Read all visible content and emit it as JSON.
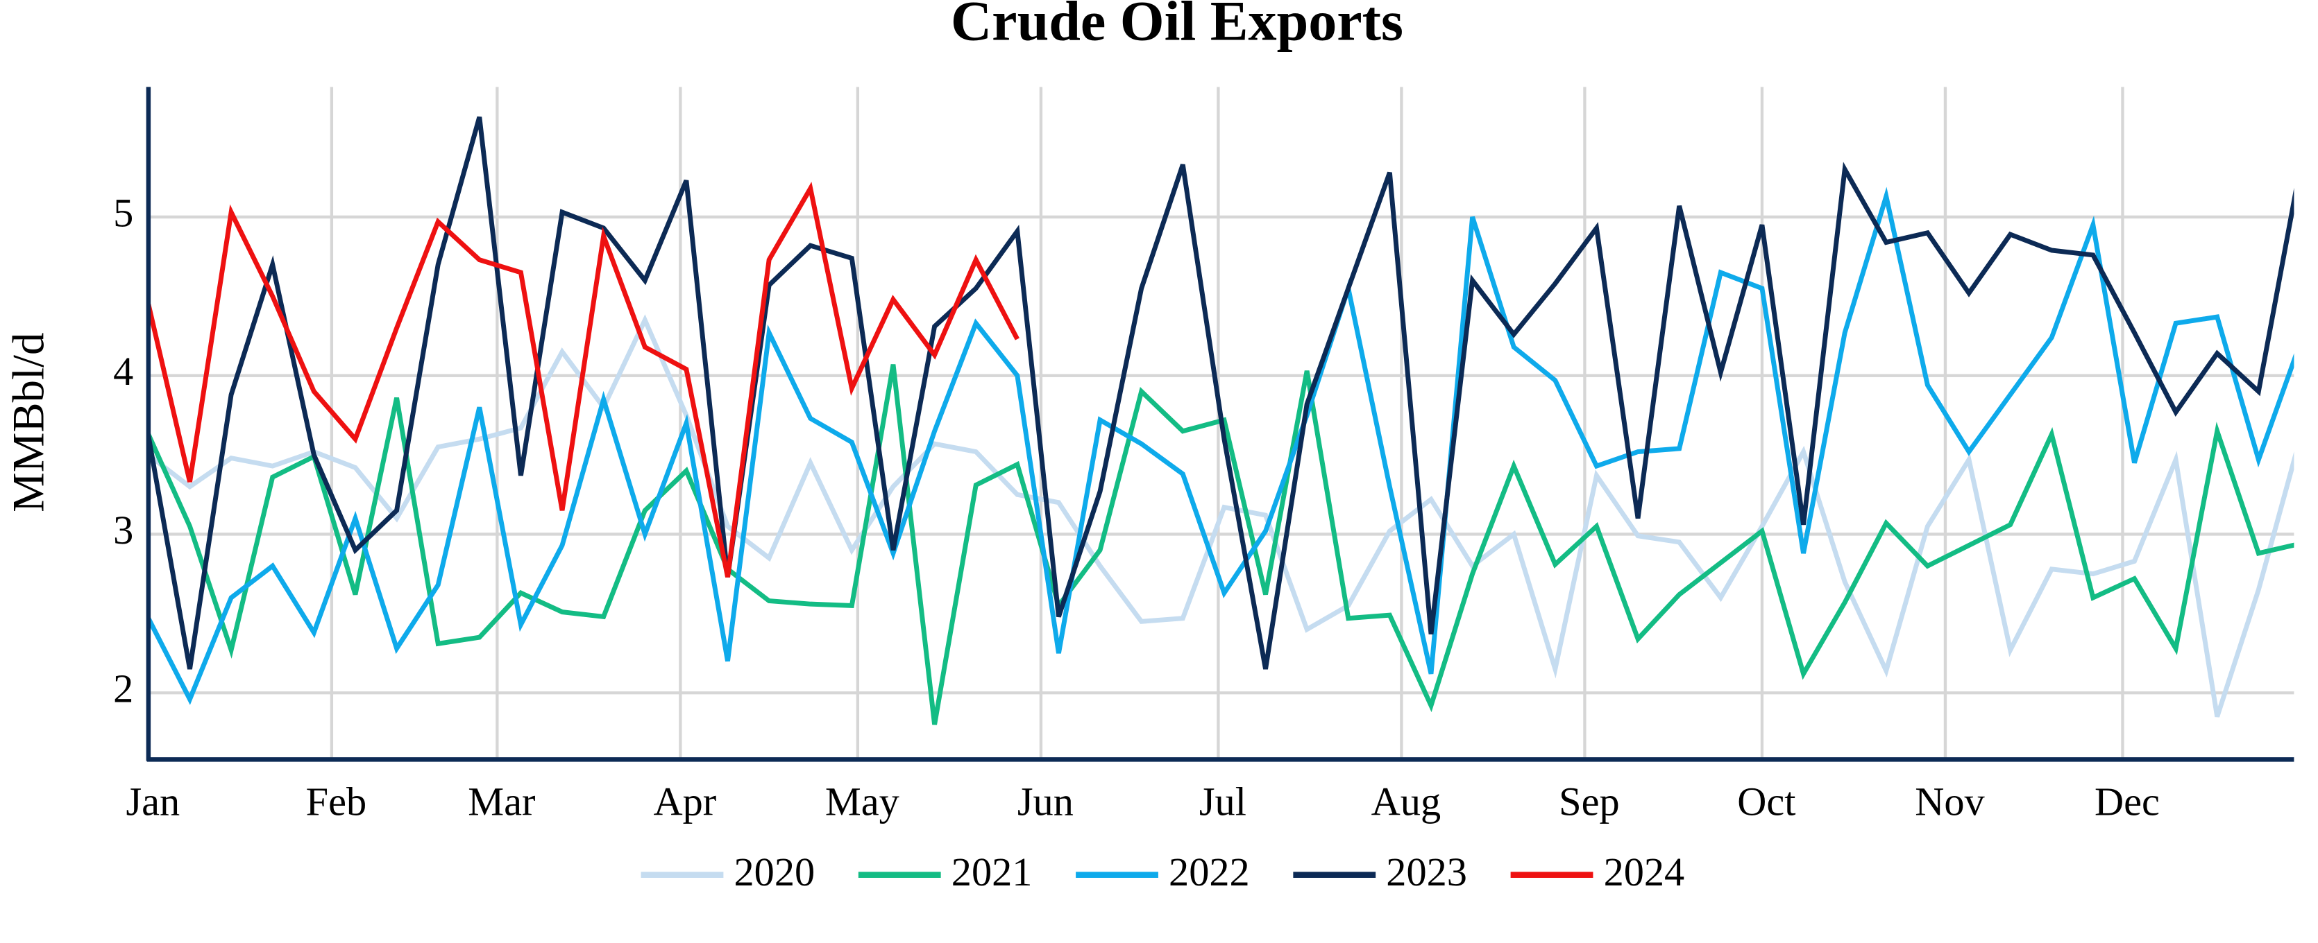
{
  "chart_data": {
    "type": "line",
    "title": "Crude Oil Exports",
    "ylabel": "MMBbl/d",
    "x": [
      1,
      8,
      15,
      22,
      29,
      36,
      43,
      50,
      57,
      64,
      71,
      78,
      85,
      92,
      99,
      106,
      113,
      120,
      127,
      134,
      141,
      148,
      155,
      162,
      169,
      176,
      183,
      190,
      197,
      204,
      211,
      218,
      225,
      232,
      239,
      246,
      253,
      260,
      267,
      274,
      281,
      288,
      295,
      302,
      309,
      316,
      323,
      330,
      337,
      344,
      351,
      358,
      365
    ],
    "xlim": [
      1,
      364
    ],
    "xticks": [
      {
        "value": 1,
        "label": "Jan"
      },
      {
        "value": 32,
        "label": "Feb"
      },
      {
        "value": 60,
        "label": "Mar"
      },
      {
        "value": 91,
        "label": "Apr"
      },
      {
        "value": 121,
        "label": "May"
      },
      {
        "value": 152,
        "label": "Jun"
      },
      {
        "value": 182,
        "label": "Jul"
      },
      {
        "value": 213,
        "label": "Aug"
      },
      {
        "value": 244,
        "label": "Sep"
      },
      {
        "value": 274,
        "label": "Oct"
      },
      {
        "value": 305,
        "label": "Nov"
      },
      {
        "value": 335,
        "label": "Dec"
      }
    ],
    "ylim": [
      1.58,
      5.82
    ],
    "yticks": [
      2,
      3,
      4,
      5
    ],
    "grid": true,
    "legend": "bottom",
    "series": [
      {
        "name": "2020",
        "color": "#c5dcf0",
        "values": [
          3.5,
          3.3,
          3.48,
          3.43,
          3.52,
          3.42,
          3.1,
          3.55,
          3.6,
          3.67,
          4.15,
          3.8,
          4.35,
          3.75,
          3.05,
          2.85,
          3.45,
          2.9,
          3.3,
          3.57,
          3.52,
          3.25,
          3.2,
          2.8,
          2.45,
          2.47,
          3.17,
          3.12,
          2.4,
          2.55,
          3.02,
          3.22,
          2.8,
          3.0,
          2.15,
          3.37,
          2.99,
          2.95,
          2.6,
          3.05,
          3.52,
          2.7,
          2.14,
          3.05,
          3.47,
          2.27,
          2.78,
          2.75,
          2.83,
          3.47,
          1.85,
          2.65,
          3.6
        ]
      },
      {
        "name": "2021",
        "color": "#13bc84",
        "values": [
          3.63,
          3.05,
          2.27,
          3.36,
          3.49,
          2.62,
          3.86,
          2.31,
          2.35,
          2.63,
          2.51,
          2.48,
          3.15,
          3.4,
          2.78,
          2.58,
          2.56,
          2.55,
          4.07,
          1.8,
          3.31,
          3.44,
          2.55,
          2.9,
          3.9,
          3.65,
          3.72,
          2.62,
          4.03,
          2.47,
          2.49,
          1.92,
          2.75,
          3.43,
          2.81,
          3.05,
          2.34,
          2.62,
          2.82,
          3.02,
          2.12,
          2.57,
          3.07,
          2.8,
          2.93,
          3.06,
          3.63,
          2.6,
          2.72,
          2.28,
          3.65,
          2.88,
          2.94
        ]
      },
      {
        "name": "2022",
        "color": "#0eaaeb",
        "values": [
          2.47,
          1.96,
          2.6,
          2.8,
          2.38,
          3.1,
          2.28,
          2.68,
          3.8,
          2.43,
          2.93,
          3.85,
          3.0,
          3.7,
          2.2,
          4.27,
          3.73,
          3.58,
          2.88,
          3.65,
          4.33,
          4.0,
          2.25,
          3.72,
          3.57,
          3.38,
          2.63,
          3.02,
          3.75,
          4.55,
          3.3,
          2.12,
          5.0,
          4.18,
          3.97,
          3.43,
          3.52,
          3.54,
          4.65,
          4.55,
          2.88,
          4.27,
          5.13,
          3.94,
          3.52,
          3.88,
          4.24,
          4.95,
          3.45,
          4.33,
          4.37,
          3.47,
          4.2
        ]
      },
      {
        "name": "2023",
        "color": "#0c2a55",
        "values": [
          3.62,
          2.15,
          3.88,
          4.7,
          3.5,
          2.9,
          3.15,
          4.7,
          5.63,
          3.37,
          5.03,
          4.93,
          4.6,
          5.23,
          2.73,
          4.57,
          4.82,
          4.74,
          2.9,
          4.31,
          4.55,
          4.91,
          2.48,
          3.27,
          4.55,
          5.33,
          3.6,
          2.15,
          3.82,
          4.55,
          5.28,
          2.37,
          4.6,
          4.26,
          4.58,
          4.93,
          3.1,
          5.07,
          4.02,
          4.95,
          3.06,
          5.3,
          4.84,
          4.9,
          4.52,
          4.89,
          4.79,
          4.76,
          4.27,
          3.77,
          4.14,
          3.9,
          5.3
        ]
      },
      {
        "name": "2024",
        "color": "#ee1111",
        "values": [
          4.45,
          3.33,
          5.03,
          4.5,
          3.9,
          3.6,
          4.3,
          4.97,
          4.73,
          4.65,
          3.15,
          4.88,
          4.18,
          4.04,
          2.73,
          4.73,
          5.18,
          3.92,
          4.48,
          4.13,
          4.73,
          4.23,
          null,
          null,
          null,
          null,
          null,
          null,
          null,
          null,
          null,
          null,
          null,
          null,
          null,
          null,
          null,
          null,
          null,
          null,
          null,
          null,
          null,
          null,
          null,
          null,
          null,
          null,
          null,
          null,
          null,
          null,
          null
        ]
      }
    ]
  }
}
